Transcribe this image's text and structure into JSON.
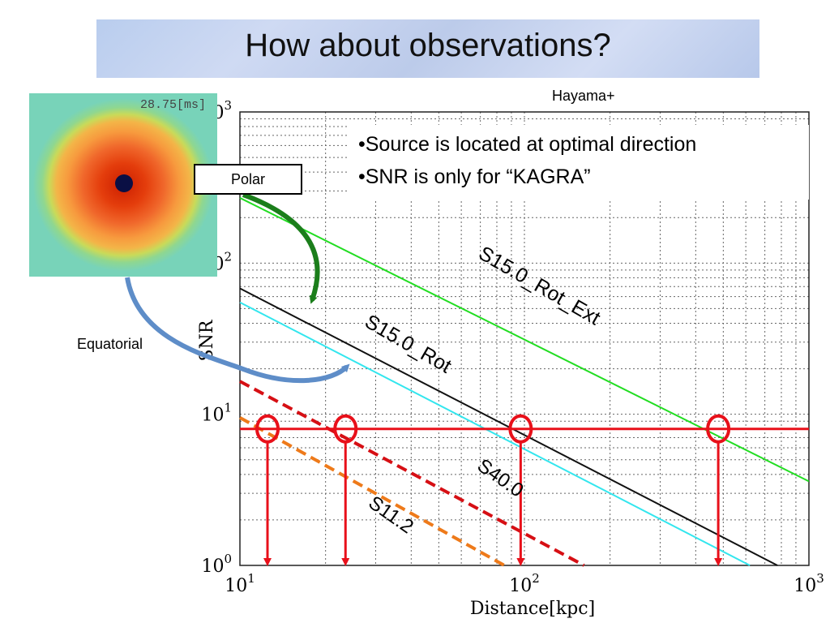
{
  "slide": {
    "title": "How about observations?",
    "credit": "Hayama+",
    "notes": [
      "•Source is located at optimal direction",
      "•SNR is only for “KAGRA”"
    ],
    "inset_time": "28.75[ms]",
    "polar_label": "Polar",
    "equatorial_label": "Equatorial"
  },
  "colors": {
    "threshold": "#e8101a",
    "s15_rot_ext": "#22dd22",
    "s15_rot": "#111111",
    "s15_rot_companion": "#33e6ee",
    "s40": "#d60f14",
    "s11": "#ee7a1a",
    "polar_arrow": "#1b7e1b",
    "equatorial_arrow": "#5e8dc8"
  },
  "chart_data": {
    "type": "line",
    "xlabel": "Distance[kpc]",
    "ylabel": "SNR",
    "xscale": "log",
    "yscale": "log",
    "xlim": [
      10,
      1000
    ],
    "ylim": [
      1,
      1000
    ],
    "grid": true,
    "x_ticks": [
      {
        "value": 10,
        "base": "10",
        "exp": "1"
      },
      {
        "value": 100,
        "base": "10",
        "exp": "2"
      },
      {
        "value": 1000,
        "base": "10",
        "exp": "3"
      }
    ],
    "y_ticks": [
      {
        "value": 1,
        "base": "10",
        "exp": "0"
      },
      {
        "value": 10,
        "base": "10",
        "exp": "1"
      },
      {
        "value": 100,
        "base": "10",
        "exp": "2"
      },
      {
        "value": 1000,
        "base": "10",
        "exp": "3"
      }
    ],
    "threshold_snr": 8,
    "series": [
      {
        "name": "S15.0_Rot_Ext",
        "color_key": "s15_rot_ext",
        "dash": false,
        "points": [
          [
            10,
            270
          ],
          [
            1000,
            3.6
          ]
        ]
      },
      {
        "name": "S15.0_Rot",
        "color_key": "s15_rot",
        "dash": false,
        "points": [
          [
            10,
            68
          ],
          [
            775,
            1
          ]
        ]
      },
      {
        "name": "",
        "color_key": "s15_rot_companion",
        "dash": false,
        "points": [
          [
            10,
            55
          ],
          [
            620,
            1
          ]
        ]
      },
      {
        "name": "S40.0",
        "color_key": "s40",
        "dash": true,
        "points": [
          [
            10,
            16.5
          ],
          [
            162,
            1
          ]
        ]
      },
      {
        "name": "S11.2",
        "color_key": "s11",
        "dash": true,
        "points": [
          [
            10,
            9.5
          ],
          [
            85,
            1
          ]
        ]
      }
    ],
    "detection_distances_kpc": [
      12.5,
      23.5,
      97,
      480
    ],
    "series_labels": [
      {
        "text": "S15.0_Rot_Ext",
        "x": 110,
        "y": 65,
        "angle": 30,
        "size": 25
      },
      {
        "text": "S15.0_Rot",
        "x": 38,
        "y": 26.8,
        "angle": 30,
        "size": 25
      },
      {
        "text": "S40.0",
        "x": 80,
        "y": 3.5,
        "angle": 35,
        "size": 24
      },
      {
        "text": "S11.2",
        "x": 33,
        "y": 2.0,
        "angle": 35,
        "size": 24
      }
    ]
  }
}
